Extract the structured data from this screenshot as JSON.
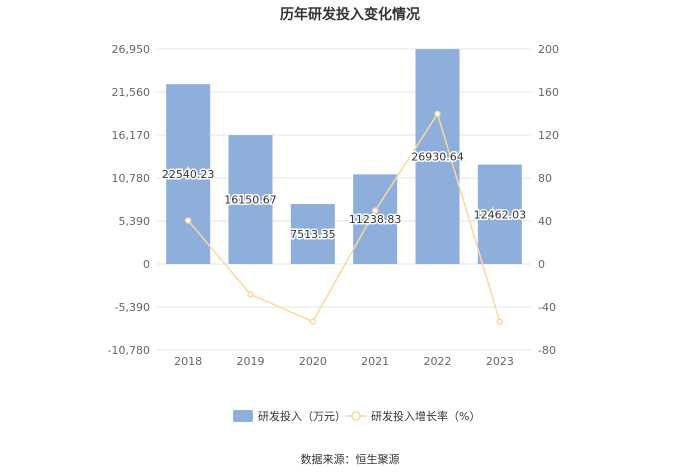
{
  "chart_data": {
    "type": "bar",
    "title": "历年研发投入变化情况",
    "categories": [
      "2018",
      "2019",
      "2020",
      "2021",
      "2022",
      "2023"
    ],
    "series": [
      {
        "name": "研发投入（万元）",
        "type": "bar",
        "axis": "left",
        "values": [
          22540.23,
          16150.67,
          7513.35,
          11238.83,
          26930.64,
          12462.03
        ],
        "labels": [
          "22540.23",
          "16150.67",
          "7513.35",
          "11238.83",
          "26930.64",
          "12462.03"
        ],
        "color": "#8eaedc"
      },
      {
        "name": "研发投入增长率（%）",
        "type": "line",
        "axis": "right",
        "values": [
          40.5,
          -28.3,
          -53.5,
          49.6,
          139.6,
          -53.7
        ],
        "color": "#fad8a0"
      }
    ],
    "left_axis": {
      "ticks": [
        "26,950",
        "21,560",
        "16,170",
        "10,780",
        "5,390",
        "0",
        "-5,390",
        "-10,780"
      ],
      "ylim": [
        -10780,
        26950
      ]
    },
    "right_axis": {
      "ticks": [
        "200",
        "160",
        "120",
        "80",
        "40",
        "0",
        "-40",
        "-80"
      ],
      "ylim": [
        -80,
        200
      ]
    },
    "legend_position": "bottom",
    "grid": true
  },
  "source_text": "数据来源：恒生聚源"
}
